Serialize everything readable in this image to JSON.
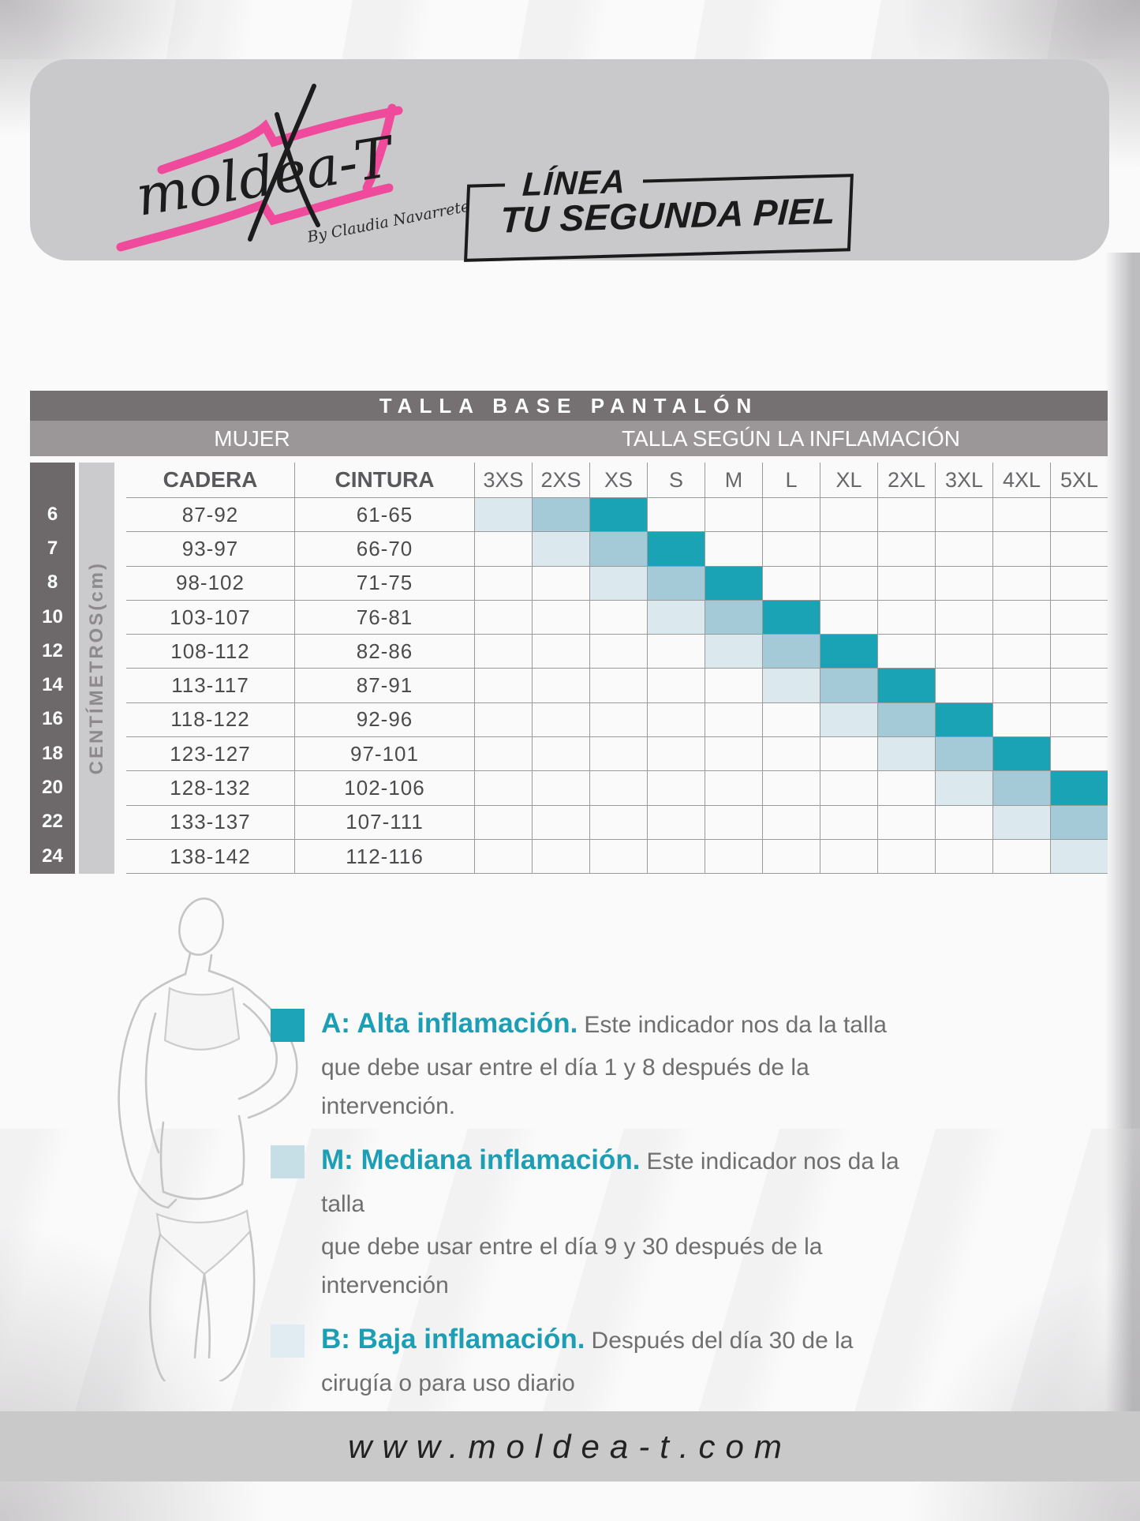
{
  "banner": {
    "logo_text": "moldea-T",
    "logo_byline": "By Claudia Navarrete",
    "badge_label": "LÍNEA",
    "badge_title": "TU SEGUNDA PIEL"
  },
  "table": {
    "title": "TALLA BASE PANTALÓN",
    "group_left": "MUJER",
    "group_right": "TALLA SEGÚN LA INFLAMACIÓN",
    "unit_label": "CENTÍMETROS(cm)",
    "measure_headers": [
      "CADERA",
      "CINTURA"
    ],
    "size_headers": [
      "3XS",
      "2XS",
      "XS",
      "S",
      "M",
      "L",
      "XL",
      "2XL",
      "3XL",
      "4XL",
      "5XL"
    ],
    "rows": [
      {
        "size": "6",
        "cadera": "87-92",
        "cintura": "61-65",
        "baja": "3XS",
        "mediana": "2XS",
        "alta": "XS"
      },
      {
        "size": "7",
        "cadera": "93-97",
        "cintura": "66-70",
        "baja": "2XS",
        "mediana": "XS",
        "alta": "S"
      },
      {
        "size": "8",
        "cadera": "98-102",
        "cintura": "71-75",
        "baja": "XS",
        "mediana": "S",
        "alta": "M"
      },
      {
        "size": "10",
        "cadera": "103-107",
        "cintura": "76-81",
        "baja": "S",
        "mediana": "M",
        "alta": "L"
      },
      {
        "size": "12",
        "cadera": "108-112",
        "cintura": "82-86",
        "baja": "M",
        "mediana": "L",
        "alta": "XL"
      },
      {
        "size": "14",
        "cadera": "113-117",
        "cintura": "87-91",
        "baja": "L",
        "mediana": "XL",
        "alta": "2XL"
      },
      {
        "size": "16",
        "cadera": "118-122",
        "cintura": "92-96",
        "baja": "XL",
        "mediana": "2XL",
        "alta": "3XL"
      },
      {
        "size": "18",
        "cadera": "123-127",
        "cintura": "97-101",
        "baja": "2XL",
        "mediana": "3XL",
        "alta": "4XL"
      },
      {
        "size": "20",
        "cadera": "128-132",
        "cintura": "102-106",
        "baja": "3XL",
        "mediana": "4XL",
        "alta": "5XL"
      },
      {
        "size": "22",
        "cadera": "133-137",
        "cintura": "107-111",
        "baja": "4XL",
        "mediana": "5XL",
        "alta": null
      },
      {
        "size": "24",
        "cadera": "138-142",
        "cintura": "112-116",
        "baja": "5XL",
        "mediana": null,
        "alta": null
      }
    ]
  },
  "colors": {
    "alta": "#1AA2B5",
    "mediana": "#A4CAD7",
    "baja": "#DBE8ED",
    "legend_lead": "#1C9FB4",
    "brand_pink": "#EF4A9B"
  },
  "legend": [
    {
      "lead": "A: Alta inflamación.",
      "line1": "Este indicador nos da la talla",
      "line2": "que debe usar entre el día 1 y 8 después de la intervención.",
      "swatch": "#1EA4B8"
    },
    {
      "lead": "M: Mediana inflamación.",
      "line1": "Este indicador nos da la talla",
      "line2": "que debe usar entre el día 9 y 30 después de la intervención",
      "swatch": "#C6DFE7"
    },
    {
      "lead": "B: Baja inflamación.",
      "line1": "Después del día 30 de la",
      "line2": "cirugía o para uso diario",
      "swatch": "#E0ECF1"
    }
  ],
  "footer": {
    "url": "www.moldea-t.com"
  }
}
